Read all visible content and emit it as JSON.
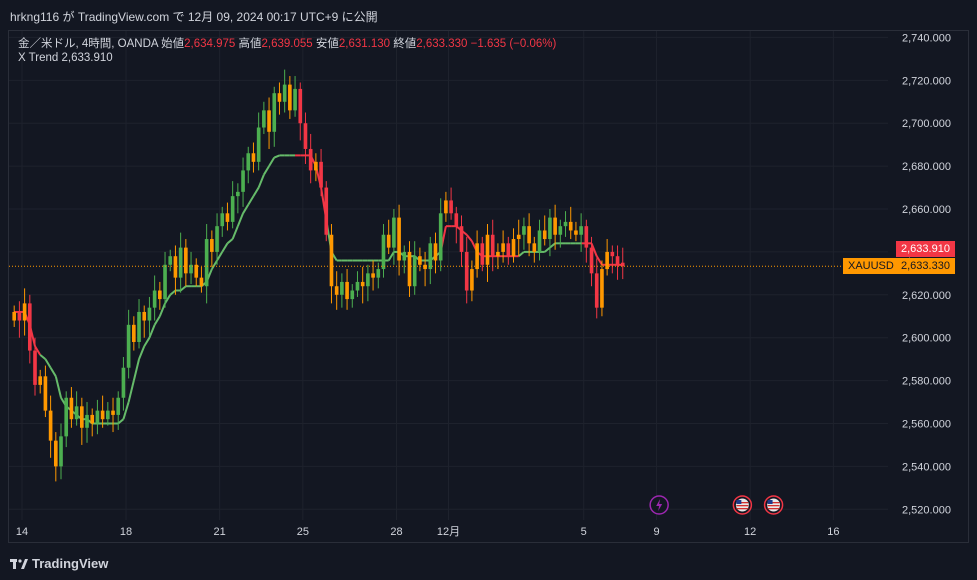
{
  "header": {
    "publish_text": "hrkng116 が TradingView.com で 12月 09, 2024 00:17 UTC+9 に公開"
  },
  "legend": {
    "symbol_text": "金／米ドル, 4時間, OANDA",
    "open_label": "始値",
    "open_value": "2,634.975",
    "high_label": "高値",
    "high_value": "2,639.055",
    "low_label": "安値",
    "low_value": "2,631.130",
    "close_label": "終値",
    "close_value": "2,633.330",
    "change_value": "−1.635 (−0.06%)",
    "indicator_name": "X Trend",
    "indicator_value": "2,633.910"
  },
  "price_tags": {
    "indicator_tag": "2,633.910",
    "symbol_tag": "XAUUSD",
    "price_tag": "2,633.330"
  },
  "footer": {
    "brand": "TradingView"
  },
  "colors": {
    "up": "#4caf50",
    "down": "#f23645",
    "trend_up": "#66bb6a",
    "trend_down": "#f23645",
    "indicator_tag": "#f23645",
    "price_tag": "#ff9800",
    "event_icon": "#9c27b0"
  },
  "chart_data": {
    "type": "candlestick",
    "symbol": "XAUUSD",
    "timeframe": "4H",
    "y_axis": {
      "ticks": [
        2520,
        2540,
        2560,
        2580,
        2600,
        2620,
        2640,
        2660,
        2680,
        2700,
        2720,
        2740
      ],
      "tick_labels": [
        "2,520.000",
        "2,540.000",
        "2,560.000",
        "2,580.000",
        "2,600.000",
        "2,620.000",
        "2,640.000",
        "2,660.000",
        "2,680.000",
        "2,700.000",
        "2,720.000",
        "2,740.000"
      ],
      "range": [
        2515,
        2743
      ]
    },
    "x_axis": {
      "labels": [
        {
          "text": "14",
          "bar": 1.5
        },
        {
          "text": "18",
          "bar": 21.5
        },
        {
          "text": "21",
          "bar": 39.5
        },
        {
          "text": "25",
          "bar": 55.5
        },
        {
          "text": "28",
          "bar": 73.5
        },
        {
          "text": "12月",
          "bar": 83.5
        },
        {
          "text": "5",
          "bar": 109.5
        },
        {
          "text": "9",
          "bar": 123.5
        },
        {
          "text": "12",
          "bar": 141.5
        },
        {
          "text": "16",
          "bar": 157.5
        }
      ],
      "range": [
        -1,
        168
      ]
    },
    "current_price_line": 2633.33,
    "closes": [
      2612,
      2608,
      2616,
      2594,
      2578,
      2582,
      2566,
      2552,
      2540,
      2554,
      2572,
      2562,
      2568,
      2558,
      2564,
      2560,
      2566,
      2562,
      2566,
      2564,
      2572,
      2586,
      2606,
      2598,
      2612,
      2608,
      2614,
      2622,
      2618,
      2634,
      2638,
      2628,
      2642,
      2630,
      2634,
      2628,
      2624,
      2646,
      2640,
      2652,
      2658,
      2654,
      2666,
      2668,
      2678,
      2686,
      2682,
      2698,
      2706,
      2696,
      2714,
      2710,
      2718,
      2706,
      2716,
      2700,
      2688,
      2678,
      2682,
      2670,
      2648,
      2624,
      2620,
      2626,
      2618,
      2622,
      2626,
      2624,
      2630,
      2628,
      2632,
      2648,
      2642,
      2656,
      2636,
      2640,
      2624,
      2638,
      2634,
      2632,
      2644,
      2636,
      2658,
      2664,
      2658,
      2652,
      2640,
      2622,
      2632,
      2644,
      2634,
      2648,
      2638,
      2640,
      2644,
      2638,
      2646,
      2648,
      2652,
      2644,
      2640,
      2650,
      2646,
      2656,
      2648,
      2652,
      2654,
      2650,
      2648,
      2652,
      2642,
      2630,
      2614,
      2632,
      2640,
      2638,
      2634,
      2633.33
    ],
    "opens": [
      2608,
      2612,
      2608,
      2616,
      2594,
      2578,
      2582,
      2566,
      2552,
      2540,
      2554,
      2572,
      2562,
      2568,
      2558,
      2564,
      2560,
      2566,
      2562,
      2566,
      2564,
      2572,
      2586,
      2606,
      2598,
      2612,
      2608,
      2614,
      2622,
      2618,
      2634,
      2638,
      2628,
      2642,
      2630,
      2634,
      2628,
      2624,
      2646,
      2640,
      2652,
      2658,
      2654,
      2666,
      2668,
      2678,
      2686,
      2682,
      2698,
      2706,
      2696,
      2714,
      2710,
      2718,
      2706,
      2716,
      2700,
      2688,
      2678,
      2682,
      2670,
      2648,
      2624,
      2620,
      2626,
      2618,
      2622,
      2626,
      2624,
      2630,
      2628,
      2632,
      2648,
      2642,
      2656,
      2636,
      2640,
      2624,
      2638,
      2634,
      2632,
      2644,
      2636,
      2658,
      2664,
      2658,
      2652,
      2640,
      2622,
      2632,
      2644,
      2634,
      2648,
      2638,
      2640,
      2644,
      2638,
      2646,
      2648,
      2652,
      2644,
      2640,
      2650,
      2646,
      2656,
      2648,
      2652,
      2654,
      2650,
      2648,
      2652,
      2642,
      2630,
      2614,
      2632,
      2640,
      2638,
      2634.975
    ],
    "x_trend": [
      2612,
      2612,
      2612,
      2606,
      2596,
      2592,
      2590,
      2586,
      2582,
      2572,
      2568,
      2566,
      2564,
      2562,
      2562,
      2560,
      2560,
      2560,
      2560,
      2560,
      2560,
      2562,
      2570,
      2580,
      2590,
      2596,
      2600,
      2606,
      2610,
      2616,
      2620,
      2622,
      2622,
      2624,
      2624,
      2624,
      2624,
      2626,
      2632,
      2636,
      2640,
      2644,
      2646,
      2652,
      2658,
      2662,
      2666,
      2670,
      2676,
      2680,
      2684,
      2685,
      2685,
      2685,
      2685,
      2685,
      2685,
      2685,
      2680,
      2670,
      2655,
      2640,
      2636,
      2636,
      2636,
      2636,
      2636,
      2636,
      2636,
      2636,
      2636,
      2636,
      2636,
      2640,
      2640,
      2638,
      2638,
      2638,
      2636,
      2636,
      2636,
      2638,
      2640,
      2652,
      2652,
      2652,
      2650,
      2648,
      2645,
      2640,
      2638,
      2638,
      2638,
      2638,
      2638,
      2638,
      2638,
      2638,
      2640,
      2640,
      2640,
      2640,
      2640,
      2642,
      2644,
      2644,
      2644,
      2644,
      2644,
      2644,
      2644,
      2644,
      2638,
      2634,
      2634,
      2634,
      2634,
      2633.91
    ],
    "x_trend_direction": [
      -1,
      -1,
      -1,
      -1,
      -1,
      -1,
      1,
      1,
      1,
      1,
      1,
      1,
      1,
      1,
      1,
      1,
      1,
      1,
      1,
      1,
      1,
      1,
      1,
      1,
      1,
      1,
      1,
      1,
      1,
      1,
      1,
      1,
      1,
      1,
      1,
      1,
      1,
      1,
      1,
      1,
      1,
      1,
      1,
      1,
      1,
      1,
      1,
      1,
      1,
      1,
      1,
      1,
      1,
      1,
      1,
      -1,
      -1,
      -1,
      -1,
      -1,
      -1,
      1,
      1,
      1,
      1,
      1,
      1,
      1,
      1,
      1,
      1,
      1,
      1,
      1,
      1,
      1,
      1,
      1,
      1,
      1,
      1,
      1,
      1,
      -1,
      -1,
      -1,
      -1,
      -1,
      -1,
      -1,
      -1,
      -1,
      -1,
      -1,
      -1,
      -1,
      -1,
      -1,
      1,
      1,
      1,
      1,
      1,
      1,
      1,
      1,
      1,
      1,
      1,
      1,
      -1,
      -1,
      -1,
      -1,
      -1,
      -1,
      -1,
      -1
    ]
  },
  "events": [
    {
      "icon": "lightning-icon",
      "bar": 124
    },
    {
      "icon": "us-flag-icon",
      "bar": 140
    },
    {
      "icon": "us-flag-icon",
      "bar": 146
    }
  ]
}
